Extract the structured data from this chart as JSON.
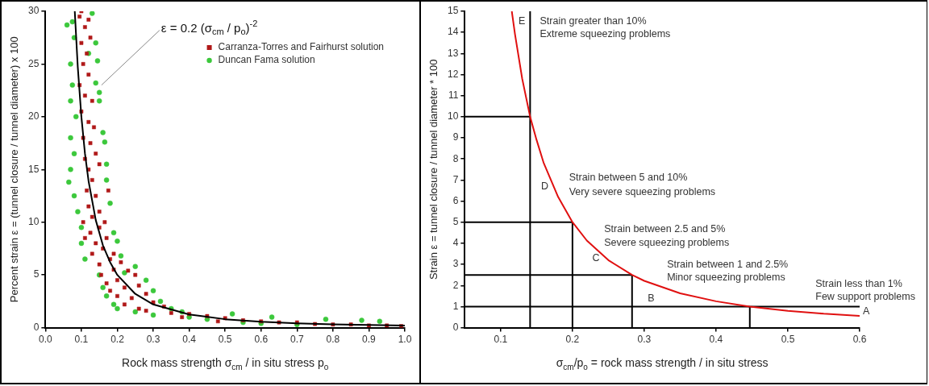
{
  "chart_data": [
    {
      "type": "scatter",
      "xlabel": "Rock mass strength σ$_{cm}$ / in situ stress p$_{o}$",
      "ylabel": "Percent strain ε = (tunnel closure / tunnel diameter) x 100",
      "xlim": [
        0,
        1
      ],
      "ylim": [
        0,
        30
      ],
      "xticks": [
        {
          "value": 0,
          "label": "0.0"
        },
        0.1,
        0.2,
        0.3,
        0.4,
        0.5,
        0.6,
        0.7,
        0.8,
        0.9,
        {
          "value": 1,
          "label": "1.0"
        }
      ],
      "yticks": [
        0,
        5,
        10,
        15,
        20,
        25,
        30
      ],
      "grid": false,
      "legend": "top right",
      "annotations": [
        {
          "text": "ε = 0.2 (σ$_{cm}$ / p$_{o}$)$^{-2}$",
          "x": 0.156,
          "y": 23
        }
      ],
      "series": [
        {
          "name": "Carranza-Torres and Fairhurst solution",
          "color": "#b01818",
          "marker": "square",
          "x": [
            0.095,
            0.1,
            0.11,
            0.12,
            0.1,
            0.115,
            0.125,
            0.105,
            0.12,
            0.095,
            0.11,
            0.13,
            0.1,
            0.12,
            0.135,
            0.105,
            0.125,
            0.11,
            0.14,
            0.12,
            0.13,
            0.15,
            0.115,
            0.14,
            0.175,
            0.12,
            0.15,
            0.105,
            0.13,
            0.165,
            0.125,
            0.15,
            0.11,
            0.14,
            0.17,
            0.13,
            0.16,
            0.19,
            0.15,
            0.18,
            0.21,
            0.155,
            0.19,
            0.23,
            0.17,
            0.2,
            0.25,
            0.18,
            0.22,
            0.26,
            0.2,
            0.24,
            0.28,
            0.22,
            0.26,
            0.3,
            0.33,
            0.28,
            0.35,
            0.4,
            0.38,
            0.45,
            0.5,
            0.48,
            0.55,
            0.6,
            0.65,
            0.7,
            0.75,
            0.8,
            0.85,
            0.9,
            0.95,
            0.99
          ],
          "values": [
            29.5,
            30,
            28.5,
            29.2,
            27,
            26,
            27.5,
            25,
            24,
            23,
            22,
            21.5,
            20.5,
            19.5,
            19,
            18,
            17.5,
            16,
            16.5,
            15,
            14,
            15.5,
            13,
            12.5,
            13,
            11.5,
            11,
            10,
            10.5,
            10,
            9,
            9.5,
            8.5,
            8,
            8.5,
            7,
            7.5,
            7,
            6,
            6.5,
            6.2,
            5,
            5.5,
            5.4,
            4.2,
            4.5,
            5,
            3.5,
            3.8,
            4,
            3,
            2.8,
            3.2,
            2.2,
            1.8,
            2.4,
            2,
            1.6,
            1.4,
            1.3,
            1,
            1.1,
            0.9,
            0.6,
            0.7,
            0.6,
            0.5,
            0.5,
            0.35,
            0.3,
            0.3,
            0.2,
            0.2,
            0.15
          ]
        },
        {
          "name": "Duncan Fama solution",
          "color": "#3cc83c",
          "marker": "circle",
          "x": [
            0.06,
            0.075,
            0.08,
            0.13,
            0.07,
            0.12,
            0.14,
            0.145,
            0.075,
            0.14,
            0.15,
            0.07,
            0.085,
            0.15,
            0.07,
            0.16,
            0.165,
            0.08,
            0.07,
            0.17,
            0.065,
            0.17,
            0.08,
            0.09,
            0.18,
            0.1,
            0.19,
            0.1,
            0.2,
            0.11,
            0.21,
            0.15,
            0.22,
            0.25,
            0.16,
            0.28,
            0.17,
            0.3,
            0.19,
            0.2,
            0.32,
            0.25,
            0.3,
            0.35,
            0.38,
            0.4,
            0.45,
            0.52,
            0.55,
            0.6,
            0.63,
            0.7,
            0.78,
            0.88,
            0.93
          ],
          "values": [
            28.7,
            29,
            27.5,
            29.8,
            25,
            26,
            27,
            25.3,
            23,
            23.2,
            22.3,
            21.5,
            20,
            21.5,
            18,
            18.5,
            17.6,
            16.5,
            15,
            15.5,
            13.8,
            14,
            12.5,
            11,
            11.8,
            9.5,
            9,
            8,
            8.2,
            6.5,
            6.8,
            5,
            5.2,
            5.8,
            3.8,
            4.5,
            3,
            3.5,
            2.2,
            1.8,
            2.5,
            1.5,
            1.2,
            1.8,
            1.5,
            1,
            0.8,
            1.3,
            0.5,
            0.4,
            1,
            0.3,
            0.8,
            0.7,
            0.6
          ]
        },
        {
          "type": "line",
          "color": "#000000",
          "marker": "none",
          "x": [
            0.0816,
            0.09,
            0.1,
            0.11,
            0.12,
            0.14,
            0.16,
            0.18,
            0.2,
            0.25,
            0.3,
            0.4,
            0.5,
            0.6,
            0.7,
            0.8,
            0.9,
            1.0
          ],
          "values": [
            30,
            24.7,
            20,
            16.5,
            13.9,
            10.2,
            7.8,
            6.2,
            5,
            3.2,
            2.2,
            1.25,
            0.8,
            0.56,
            0.41,
            0.31,
            0.25,
            0.2
          ]
        }
      ]
    },
    {
      "type": "line",
      "xlabel": "σ$_{cm}$/p$_{o}$ = rock mass strength / in situ stress",
      "ylabel": "Strain ε = tunnel closure / tunnel diameter * 100",
      "xlim": [
        0.05,
        0.6
      ],
      "ylim": [
        0,
        15
      ],
      "xticks": [
        0.1,
        0.2,
        0.3,
        0.4,
        0.5,
        0.6
      ],
      "yticks": [
        0,
        1,
        2,
        3,
        4,
        5,
        6,
        7,
        8,
        9,
        10,
        11,
        12,
        13,
        14,
        15
      ],
      "grid": false,
      "annotations": [
        "Strain greater than 10%",
        "Extreme squeezing problems",
        "Strain between 5 and 10%",
        "Very severe squeezing problems",
        "Strain between 2.5 and 5%",
        "Severe squeezing problems",
        "Strain between 1 and 2.5%",
        "Minor squeezing problems",
        "Strain less than 1%",
        "Few support problems",
        "E",
        "D",
        "C",
        "B",
        "A"
      ],
      "series": [
        {
          "color": "#e01010",
          "x": [
            0.1155,
            0.12,
            0.13,
            0.141,
            0.15,
            0.16,
            0.18,
            0.2,
            0.22,
            0.25,
            0.283,
            0.3,
            0.35,
            0.4,
            0.447,
            0.5,
            0.55,
            0.6
          ],
          "values": [
            15,
            13.9,
            11.8,
            10,
            8.9,
            7.8,
            6.2,
            5,
            4.13,
            3.2,
            2.5,
            2.22,
            1.63,
            1.25,
            1,
            0.8,
            0.66,
            0.56
          ]
        },
        {
          "color": "#000000",
          "x": [
            0.141,
            0.141
          ],
          "values": [
            0,
            15
          ]
        },
        {
          "color": "#000000",
          "x": [
            0.2,
            0.2
          ],
          "values": [
            0,
            5
          ]
        },
        {
          "color": "#000000",
          "x": [
            0.283,
            0.283
          ],
          "values": [
            0,
            2.5
          ]
        },
        {
          "color": "#000000",
          "x": [
            0.447,
            0.447
          ],
          "values": [
            0,
            1
          ]
        },
        {
          "color": "#000000",
          "x": [
            0.05,
            0.141
          ],
          "values": [
            10,
            10
          ]
        },
        {
          "color": "#000000",
          "x": [
            0.05,
            0.2
          ],
          "values": [
            5,
            5
          ]
        },
        {
          "color": "#000000",
          "x": [
            0.05,
            0.283
          ],
          "values": [
            2.5,
            2.5
          ]
        },
        {
          "color": "#000000",
          "x": [
            0.05,
            0.6
          ],
          "values": [
            1,
            1
          ]
        }
      ]
    }
  ]
}
